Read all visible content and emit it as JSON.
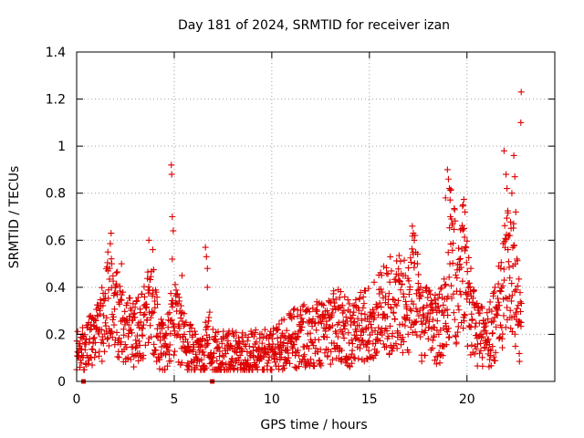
{
  "chart_data": {
    "type": "scatter",
    "title": "Day 181 of 2024, SRMTID for receiver izan",
    "xlabel": "GPS time / hours",
    "ylabel": "SRMTID / TECUs",
    "xlim": [
      0,
      24.5
    ],
    "ylim": [
      0,
      1.4
    ],
    "xticks": [
      0,
      5,
      10,
      15,
      20
    ],
    "xtick_labels": [
      "0",
      "5",
      "10",
      "15",
      "20"
    ],
    "yticks": [
      0,
      0.2,
      0.4,
      0.6,
      0.8,
      1.0,
      1.2,
      1.4
    ],
    "ytick_labels": [
      "0",
      "0.2",
      "0.4",
      "0.6",
      "0.8",
      "1",
      "1.2",
      "1.4"
    ],
    "grid": true,
    "marker": "plus",
    "color": "#dd0000",
    "series": [
      {
        "name": "SRMTID",
        "profile": [
          [
            0.0,
            0.12
          ],
          [
            0.5,
            0.15
          ],
          [
            1.0,
            0.18
          ],
          [
            1.5,
            0.3
          ],
          [
            1.7,
            0.42
          ],
          [
            2.0,
            0.3
          ],
          [
            2.5,
            0.22
          ],
          [
            3.0,
            0.2
          ],
          [
            3.5,
            0.25
          ],
          [
            3.8,
            0.35
          ],
          [
            4.2,
            0.18
          ],
          [
            4.6,
            0.12
          ],
          [
            4.9,
            0.3
          ],
          [
            5.2,
            0.25
          ],
          [
            5.6,
            0.15
          ],
          [
            6.0,
            0.13
          ],
          [
            6.5,
            0.12
          ],
          [
            6.8,
            0.2
          ],
          [
            7.0,
            0.12
          ],
          [
            8.0,
            0.12
          ],
          [
            9.0,
            0.12
          ],
          [
            10.0,
            0.13
          ],
          [
            11.0,
            0.18
          ],
          [
            12.0,
            0.2
          ],
          [
            13.0,
            0.22
          ],
          [
            13.5,
            0.25
          ],
          [
            14.0,
            0.2
          ],
          [
            15.0,
            0.25
          ],
          [
            15.5,
            0.3
          ],
          [
            16.0,
            0.32
          ],
          [
            16.5,
            0.35
          ],
          [
            17.0,
            0.3
          ],
          [
            17.3,
            0.45
          ],
          [
            17.6,
            0.25
          ],
          [
            18.5,
            0.22
          ],
          [
            19.0,
            0.3
          ],
          [
            19.2,
            0.6
          ],
          [
            19.5,
            0.35
          ],
          [
            19.8,
            0.5
          ],
          [
            20.2,
            0.3
          ],
          [
            20.5,
            0.2
          ],
          [
            21.0,
            0.18
          ],
          [
            21.5,
            0.25
          ],
          [
            22.0,
            0.45
          ],
          [
            22.3,
            0.5
          ],
          [
            22.6,
            0.3
          ],
          [
            22.8,
            0.2
          ]
        ],
        "spikes": [
          [
            1.6,
            0.55
          ],
          [
            1.8,
            0.5
          ],
          [
            2.3,
            0.5
          ],
          [
            3.7,
            0.6
          ],
          [
            3.9,
            0.56
          ],
          [
            4.85,
            0.92
          ],
          [
            4.87,
            0.88
          ],
          [
            4.9,
            0.7
          ],
          [
            4.95,
            0.64
          ],
          [
            4.9,
            0.52
          ],
          [
            5.4,
            0.45
          ],
          [
            6.6,
            0.57
          ],
          [
            6.65,
            0.53
          ],
          [
            6.7,
            0.48
          ],
          [
            6.7,
            0.4
          ],
          [
            13.4,
            0.39
          ],
          [
            16.5,
            0.45
          ],
          [
            17.2,
            0.66
          ],
          [
            17.25,
            0.63
          ],
          [
            17.3,
            0.6
          ],
          [
            18.9,
            0.78
          ],
          [
            19.0,
            0.9
          ],
          [
            19.05,
            0.86
          ],
          [
            19.1,
            0.82
          ],
          [
            19.15,
            0.7
          ],
          [
            19.8,
            0.75
          ],
          [
            19.9,
            0.72
          ],
          [
            19.85,
            0.65
          ],
          [
            20.2,
            0.48
          ],
          [
            21.9,
            0.98
          ],
          [
            22.0,
            0.88
          ],
          [
            22.05,
            0.82
          ],
          [
            22.3,
            0.8
          ],
          [
            22.4,
            0.96
          ],
          [
            22.45,
            0.87
          ],
          [
            22.5,
            0.72
          ],
          [
            22.2,
            0.62
          ],
          [
            22.1,
            0.56
          ],
          [
            22.78,
            1.23
          ],
          [
            22.76,
            1.1
          ]
        ],
        "floor_points": [
          [
            0.35,
            0.0
          ],
          [
            6.95,
            0.0
          ]
        ]
      }
    ]
  }
}
